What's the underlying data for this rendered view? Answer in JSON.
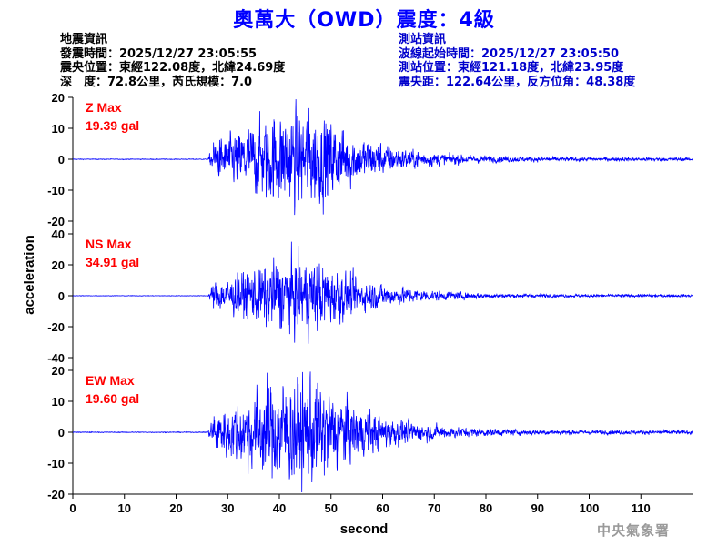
{
  "title": "奧萬大（OWD）震度：4級",
  "event_info": {
    "heading": "地震資訊",
    "origin_time": "發震時間：2025/12/27 23:05:55",
    "epicenter": "震央位置：東經122.08度，北緯24.69度",
    "depth_magnitude": "深　度：72.8公里，芮氏規模：7.0"
  },
  "station_info": {
    "heading": "測站資訊",
    "wave_start": "波線起始時間：2025/12/27 23:05:50",
    "station_location": "測站位置：東經121.18度，北緯23.95度",
    "distance_azimuth": "震央距：122.64公里，反方位角：48.38度"
  },
  "watermark": "中央氣象署",
  "colors": {
    "trace": "#0000ff",
    "max_label": "#ff0000",
    "title": "#0000ff"
  },
  "chart_data": {
    "type": "line",
    "xlabel": "second",
    "ylabel": "acceleration",
    "xlim": [
      0,
      120
    ],
    "xticks": [
      0,
      10,
      20,
      30,
      40,
      50,
      60,
      70,
      80,
      90,
      100,
      110
    ],
    "onset_s": 26.5,
    "series": [
      {
        "name": "Z",
        "max_label": "Z Max",
        "max_value": "19.39 gal",
        "peak_gal": 19.39,
        "ylim": [
          -20,
          20
        ],
        "yticks": [
          -20,
          -10,
          0,
          10,
          20
        ]
      },
      {
        "name": "NS",
        "max_label": "NS Max",
        "max_value": "34.91 gal",
        "peak_gal": 34.91,
        "ylim": [
          -40,
          40
        ],
        "yticks": [
          -40,
          -20,
          0,
          20,
          40
        ]
      },
      {
        "name": "EW",
        "max_label": "EW Max",
        "max_value": "19.60 gal",
        "peak_gal": 19.6,
        "ylim": [
          -20,
          20
        ],
        "yticks": [
          -20,
          -10,
          0,
          10,
          20
        ]
      }
    ]
  }
}
